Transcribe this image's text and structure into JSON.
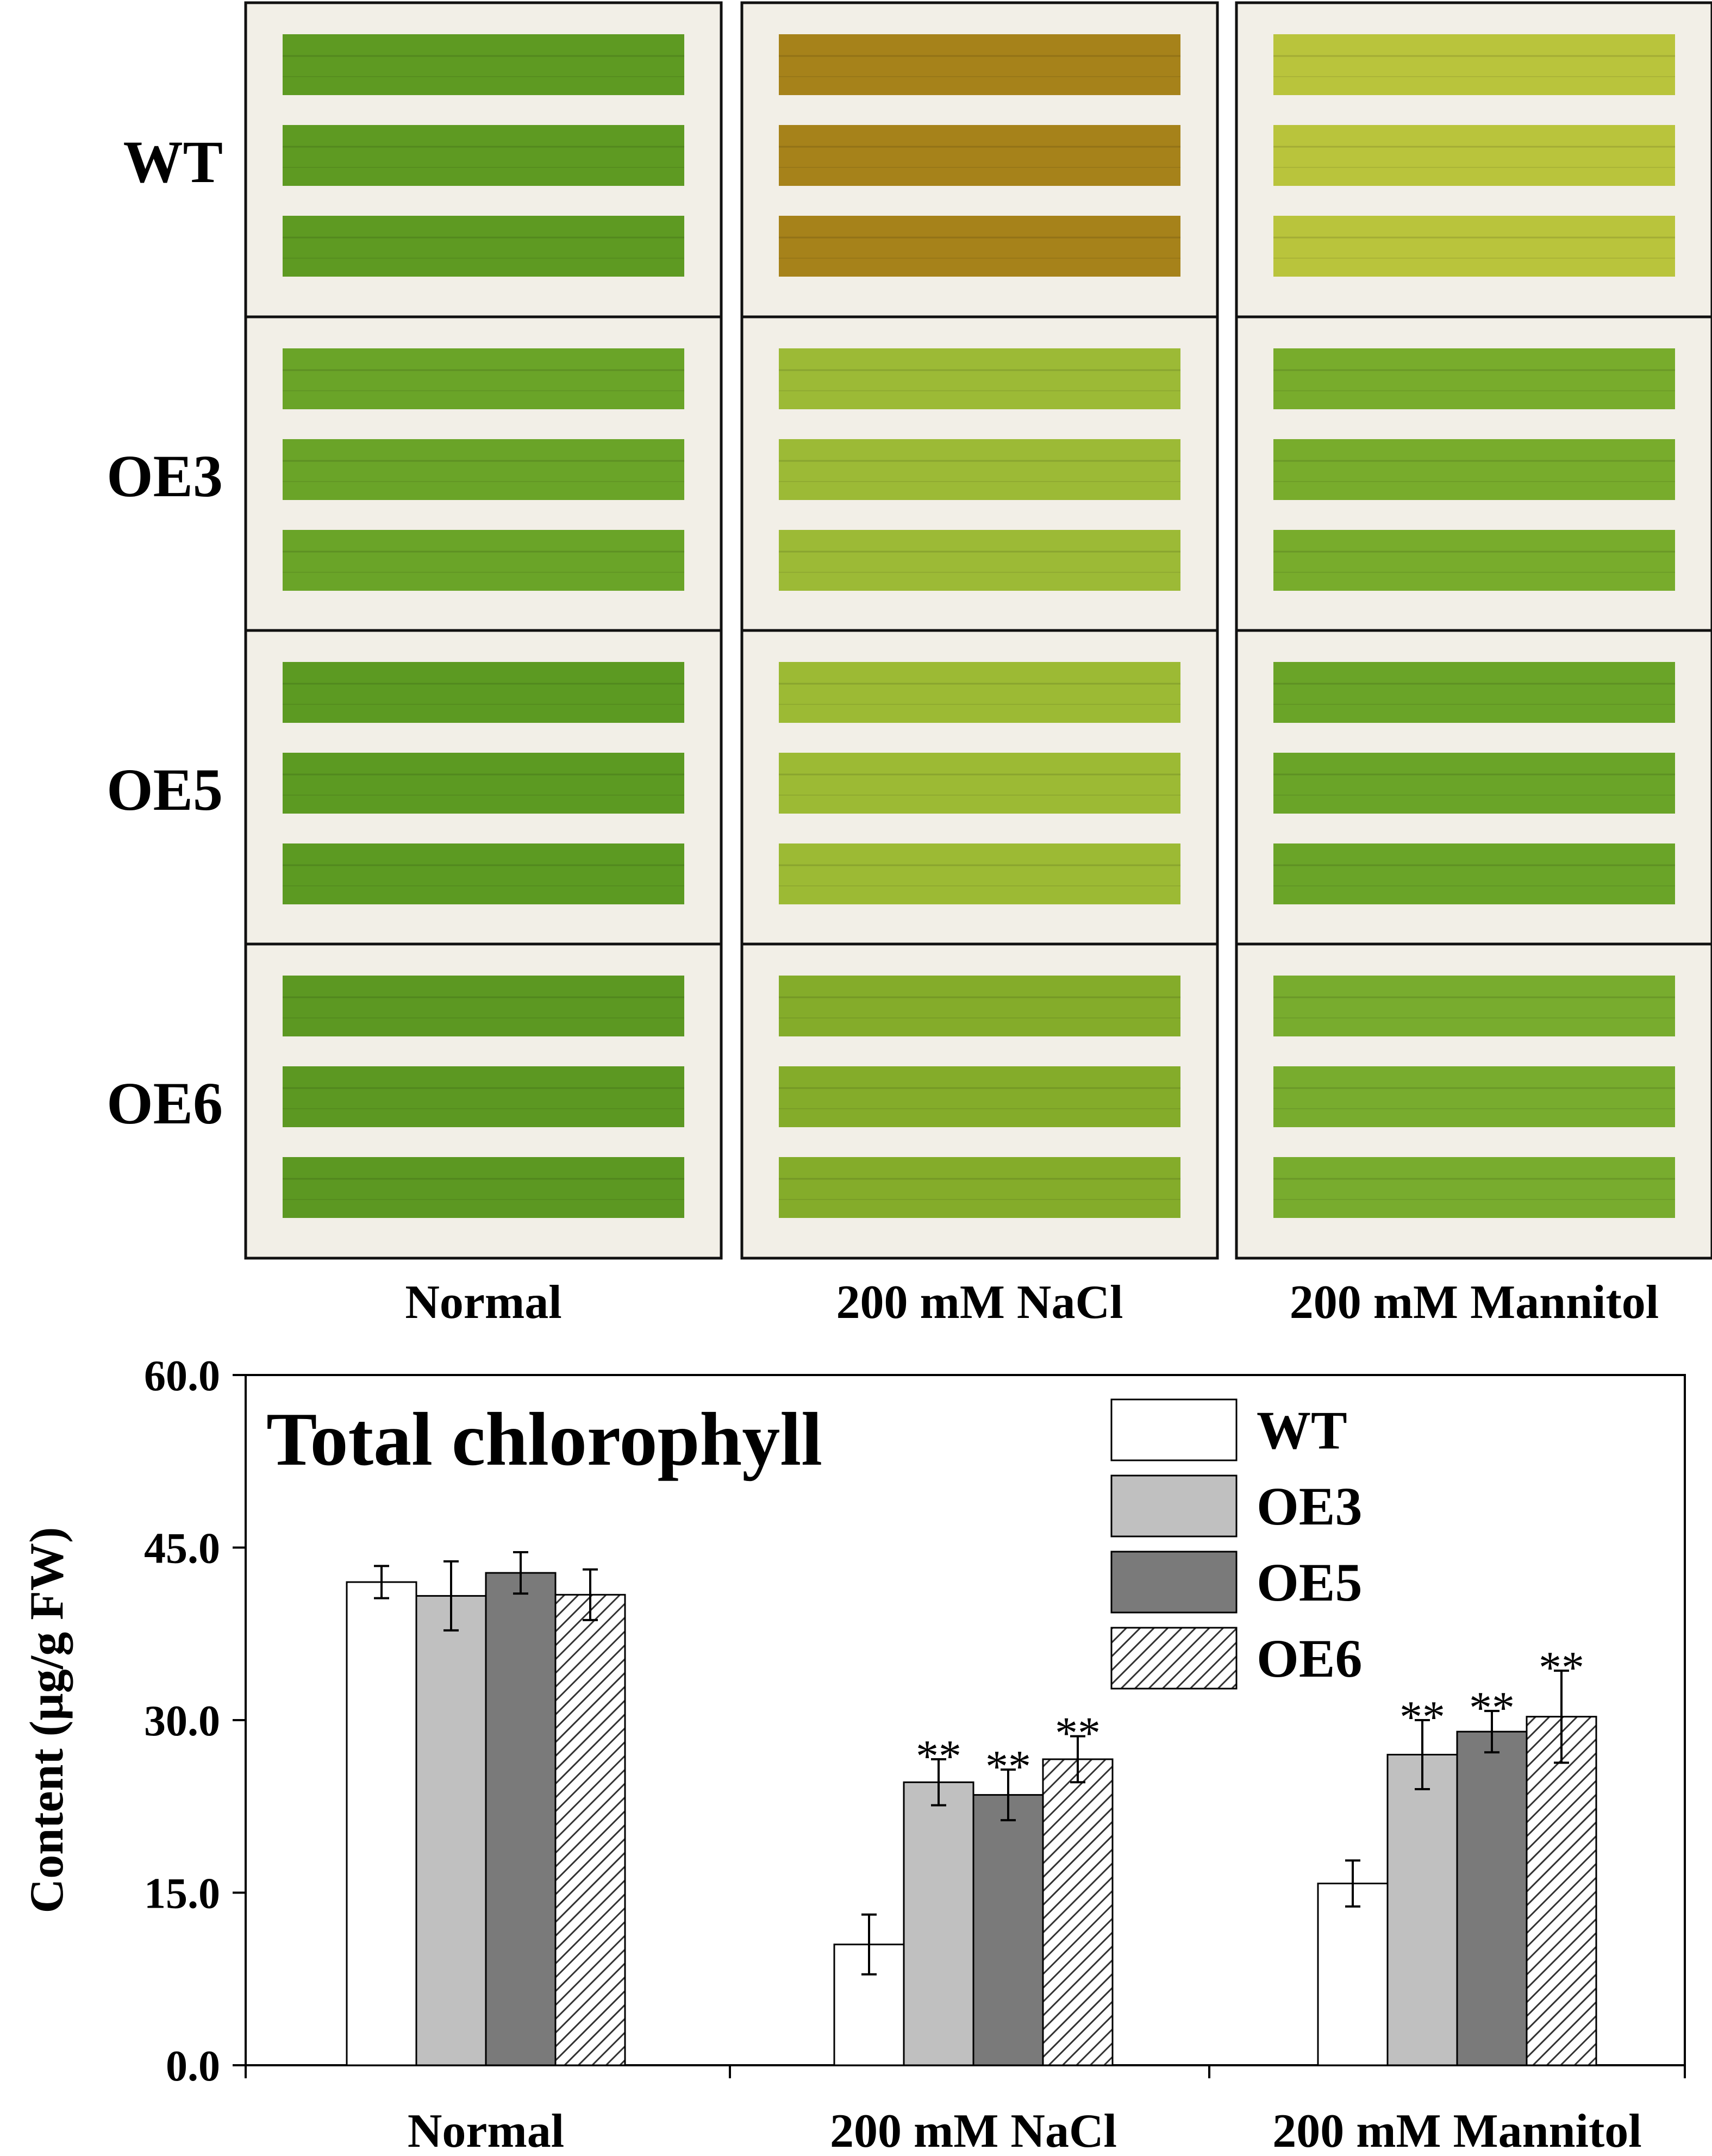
{
  "photo_panel": {
    "row_labels": [
      "WT",
      "OE3",
      "OE5",
      "OE6"
    ],
    "column_labels": [
      "Normal",
      "200 mM NaCl",
      "200 mM Mannitol"
    ],
    "leaf_colors": [
      [
        "#5e9a22",
        "#a6821a",
        "#b9c43c"
      ],
      [
        "#6aa428",
        "#9cba36",
        "#78ac2c"
      ],
      [
        "#5c9a22",
        "#9cba34",
        "#6aa428"
      ],
      [
        "#5c9822",
        "#84ac2a",
        "#78ac2e"
      ]
    ]
  },
  "chart_data": {
    "type": "bar",
    "title": "Total chlorophyll",
    "ylabel": "Content (µg/g FW)",
    "xlabel": "",
    "ylim": [
      0,
      60
    ],
    "yticks": [
      "0.0",
      "15.0",
      "30.0",
      "45.0",
      "60.0"
    ],
    "categories": [
      "Normal",
      "200 mM NaCl",
      "200 mM Mannitol"
    ],
    "series": [
      {
        "name": "WT",
        "fill": "#ffffff",
        "pattern": "none",
        "values": [
          42.0,
          10.5,
          15.8
        ],
        "errors": [
          1.4,
          2.6,
          2.0
        ],
        "significance": [
          "",
          "",
          ""
        ]
      },
      {
        "name": "OE3",
        "fill": "#c0c0c0",
        "pattern": "none",
        "values": [
          40.8,
          24.6,
          27.0
        ],
        "errors": [
          3.0,
          2.0,
          3.0
        ],
        "significance": [
          "",
          "**",
          "**"
        ]
      },
      {
        "name": "OE5",
        "fill": "#7a7a7a",
        "pattern": "none",
        "values": [
          42.8,
          23.5,
          29.0
        ],
        "errors": [
          1.8,
          2.2,
          1.8
        ],
        "significance": [
          "",
          "**",
          "**"
        ]
      },
      {
        "name": "OE6",
        "fill": "#ffffff",
        "pattern": "hatch",
        "values": [
          40.9,
          26.6,
          30.3
        ],
        "errors": [
          2.2,
          2.0,
          4.0
        ],
        "significance": [
          "",
          "**",
          "**"
        ]
      }
    ],
    "legend_position": "top-right"
  }
}
